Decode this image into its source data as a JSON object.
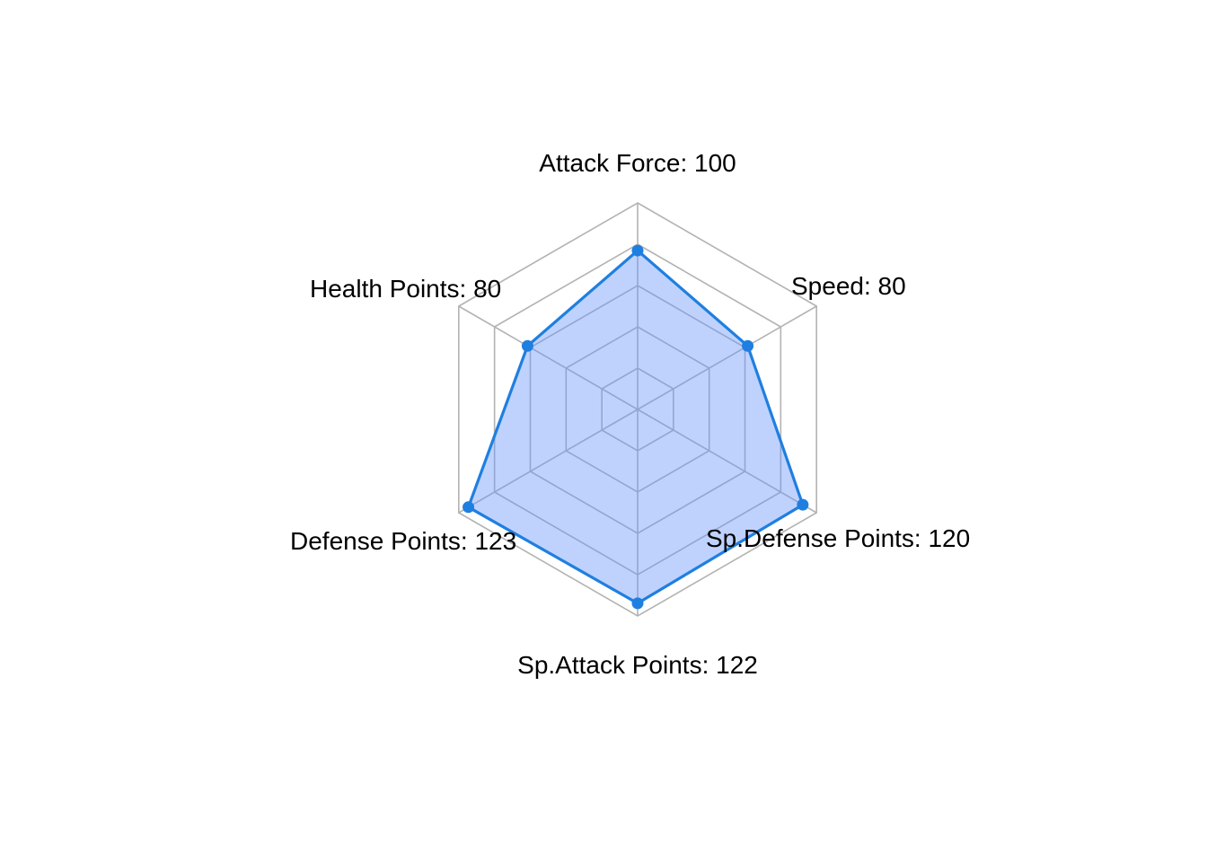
{
  "chart_data": {
    "type": "radar",
    "title": "",
    "axes": [
      {
        "name": "Attack Force",
        "value": 100,
        "label": "Attack Force: 100"
      },
      {
        "name": "Speed",
        "value": 80,
        "label": "Speed: 80"
      },
      {
        "name": "Sp.Defense Points",
        "value": 120,
        "label": "Sp.Defense Points: 120"
      },
      {
        "name": "Sp.Attack Points",
        "value": 122,
        "label": "Sp.Attack Points: 122"
      },
      {
        "name": "Defense Points",
        "value": 123,
        "label": "Defense Points: 123"
      },
      {
        "name": "Health Points",
        "value": 80,
        "label": "Health Points: 80"
      }
    ],
    "range": [
      0,
      130
    ],
    "grid_levels": 5,
    "grid": true,
    "legend": "none",
    "colors": {
      "line": "#1f7fe0",
      "fill": "#6694fa",
      "grid": "#b3b3b3"
    }
  }
}
